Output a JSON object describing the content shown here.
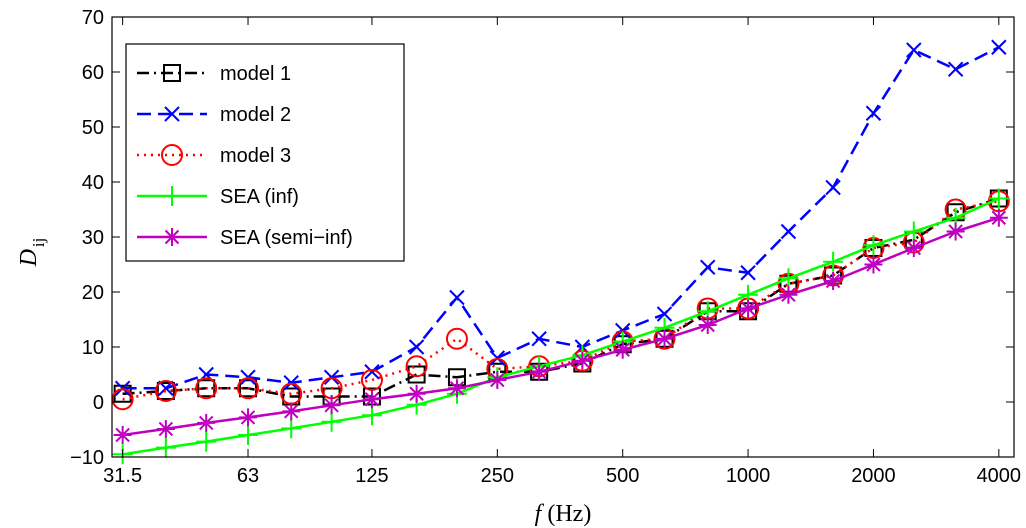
{
  "chart_data": {
    "type": "line",
    "xscale": "log2",
    "x": [
      31.5,
      40,
      50,
      63,
      80,
      100,
      125,
      160,
      200,
      250,
      315,
      400,
      500,
      630,
      800,
      1000,
      1250,
      1600,
      2000,
      2500,
      3150,
      4000
    ],
    "xticks": [
      "31.5",
      "63",
      "125",
      "250",
      "500",
      "1000",
      "2000",
      "4000"
    ],
    "yticks": [
      "−10",
      "0",
      "10",
      "20",
      "30",
      "40",
      "50",
      "60",
      "70"
    ],
    "ylim": [
      -10,
      70
    ],
    "xlabel_italic": "f",
    "xlabel_unit": "(Hz)",
    "ylabel_main": "D",
    "ylabel_sub": "ij",
    "grid": false,
    "legend_position": "top-left",
    "series": [
      {
        "name": "model 1",
        "color": "#000000",
        "dash": "dashdot",
        "marker": "square",
        "values": [
          1.5,
          2,
          2.5,
          2.5,
          1,
          1,
          1,
          5,
          4.5,
          5.5,
          5.5,
          7,
          10.5,
          11.5,
          16.5,
          16.5,
          21.5,
          23,
          28,
          29.5,
          34.5,
          37
        ]
      },
      {
        "name": "model 2",
        "color": "#0000ff",
        "dash": "dashed",
        "marker": "x",
        "values": [
          2.5,
          2.5,
          5,
          4.5,
          3.5,
          4.5,
          5.5,
          10,
          19,
          8,
          11.5,
          10,
          13,
          16,
          24.5,
          23.5,
          31,
          39,
          52.5,
          64,
          60.5,
          64.5
        ]
      },
      {
        "name": "model 3",
        "color": "#ff0000",
        "dash": "dotted",
        "marker": "circle",
        "values": [
          0.5,
          2,
          2.5,
          2.5,
          1.5,
          2.5,
          4,
          6.5,
          11.5,
          6,
          6.5,
          7.5,
          11,
          11.5,
          17,
          17,
          21.5,
          23,
          28,
          29,
          35,
          36.5
        ]
      },
      {
        "name": "SEA (inf)",
        "color": "#00ff00",
        "dash": "solid",
        "marker": "plus",
        "values": [
          -9.5,
          -8.3,
          -7.2,
          -6,
          -4.8,
          -3.6,
          -2.4,
          -0.5,
          1.5,
          4.5,
          6.5,
          8.5,
          11,
          13.5,
          16.5,
          19.5,
          22.5,
          25.5,
          28.5,
          31,
          33.5,
          37
        ]
      },
      {
        "name": "SEA (semi−inf)",
        "color": "#bf00bf",
        "dash": "solid",
        "marker": "asterisk",
        "values": [
          -6,
          -4.9,
          -3.8,
          -2.8,
          -1.7,
          -0.6,
          0.5,
          1.5,
          2.5,
          4,
          5.5,
          7.5,
          9.5,
          11.5,
          14,
          17,
          19.5,
          22,
          25,
          28,
          31,
          33.5
        ]
      }
    ]
  }
}
